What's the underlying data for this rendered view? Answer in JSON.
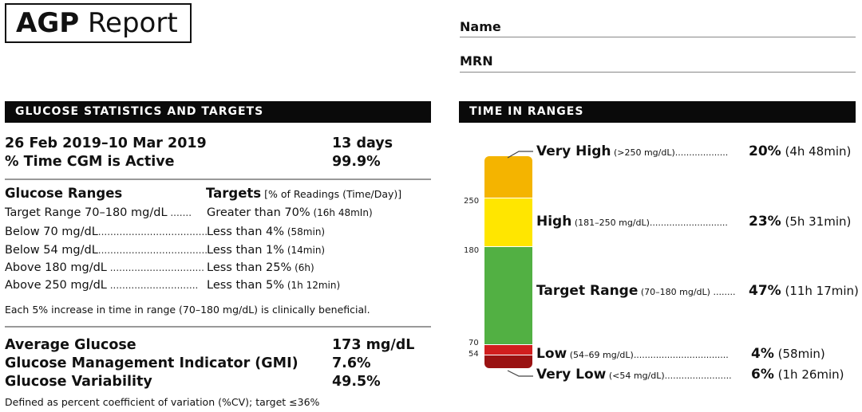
{
  "header": {
    "title_bold": "AGP",
    "title_rest": " Report",
    "name_label": "Name",
    "mrn_label": "MRN"
  },
  "stats": {
    "section_title": "GLUCOSE STATISTICS AND TARGETS",
    "date_range": "26 Feb 2019–10 Mar 2019",
    "days": "13 days",
    "cgm_active_label": "% Time CGM is Active",
    "cgm_active_value": "99.9%",
    "ranges_header": "Glucose Ranges",
    "targets_header": "Targets",
    "targets_sub": " [% of Readings (Time/Day)]",
    "rows": [
      {
        "range": "Target Range 70–180 mg/dL",
        "dots": " .......",
        "target": "Greater than 70%",
        "time": " (16h 48mIn)"
      },
      {
        "range": "Below 70 mg/dL",
        "dots": "....................................",
        "target": "Less than 4%",
        "time": " (58min)"
      },
      {
        "range": "Below 54 mg/dL",
        "dots": "....................................",
        "target": "Less than 1%",
        "time": " (14min)"
      },
      {
        "range": "Above 180 mg/dL",
        "dots": " ...............................",
        "target": "Less than 25%",
        "time": " (6h)"
      },
      {
        "range": "Above 250 mg/dL",
        "dots": " .............................",
        "target": "Less than 5%",
        "time": " (1h 12min)"
      }
    ],
    "note": "Each 5% increase in time in range (70–180 mg/dL) is clinically beneficial.",
    "avg_label": "Average Glucose",
    "avg_value": "173 mg/dL",
    "gmi_label": "Glucose Management Indicator (GMI)",
    "gmi_value": "7.6%",
    "gv_label": "Glucose Variability",
    "gv_value": "49.5%",
    "gv_note": "Defined as percent coefficient of variation (%CV); target ≤36%"
  },
  "tir": {
    "section_title": "TIME IN RANGES",
    "ticks": {
      "t250": "250",
      "t180": "180",
      "t70": "70",
      "t54": "54"
    },
    "levels": [
      {
        "name": "Very High",
        "range": " (>250 mg/dL)",
        "dots": "...................",
        "pct": "20%",
        "time": " (4h 48min)",
        "color": "#f4b400"
      },
      {
        "name": "High",
        "range": " (181–250 mg/dL)",
        "dots": "............................",
        "pct": "23%",
        "time": " (5h 31min)",
        "color": "#ffe600"
      },
      {
        "name": "Target Range",
        "range": " (70–180 mg/dL)",
        "dots": " ........",
        "pct": "47%",
        "time": " (11h 17min)",
        "color": "#52b043"
      },
      {
        "name": "Low",
        "range": " (54–69 mg/dL)",
        "dots": "..................................",
        "pct": "4%",
        "time": " (58min)",
        "color": "#d11e1e"
      },
      {
        "name": "Very Low",
        "range": " (<54 mg/dL)",
        "dots": "........................",
        "pct": "6%",
        "time": " (1h 26min)",
        "color": "#9a1212"
      }
    ]
  }
}
